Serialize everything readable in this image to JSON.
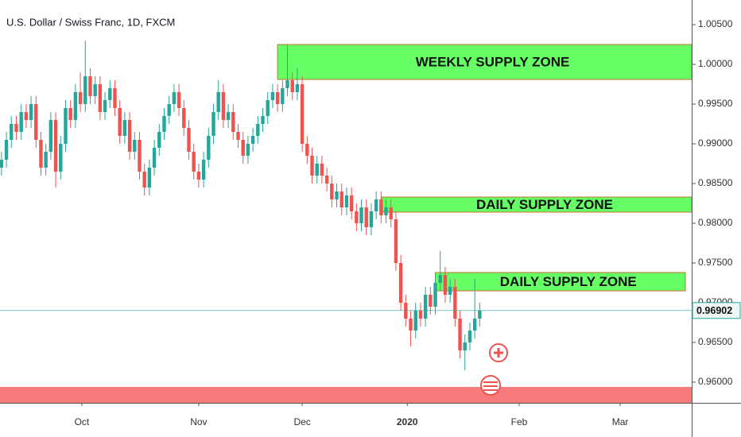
{
  "chart_data": {
    "type": "candlestick",
    "title": "U.S. Dollar / Swiss Franc, 1D, FXCM",
    "up_color": "#26a69a",
    "down_color": "#ef5350",
    "open": [
      0.987,
      0.988,
      0.9905,
      0.9925,
      0.9915,
      0.994,
      0.993,
      0.995,
      0.9905,
      0.987,
      0.989,
      0.993,
      0.9865,
      0.99,
      0.9945,
      0.993,
      0.9965,
      0.995,
      0.9985,
      0.996,
      0.9975,
      0.994,
      0.9955,
      0.997,
      0.9945,
      0.991,
      0.993,
      0.989,
      0.9905,
      0.9865,
      0.9845,
      0.987,
      0.9895,
      0.9915,
      0.9935,
      0.995,
      0.9965,
      0.9945,
      0.992,
      0.989,
      0.9865,
      0.9855,
      0.988,
      0.991,
      0.994,
      0.9965,
      0.993,
      0.994,
      0.9915,
      0.9905,
      0.9885,
      0.99,
      0.991,
      0.9925,
      0.9935,
      0.9955,
      0.9965,
      0.995,
      0.997,
      0.998,
      0.9965,
      0.9975,
      0.99,
      0.9885,
      0.986,
      0.9875,
      0.986,
      0.985,
      0.983,
      0.984,
      0.982,
      0.9835,
      0.9815,
      0.98,
      0.982,
      0.9795,
      0.9815,
      0.983,
      0.981,
      0.982,
      0.9805,
      0.975,
      0.97,
      0.968,
      0.9665,
      0.969,
      0.968,
      0.971,
      0.9695,
      0.9725,
      0.9735,
      0.971,
      0.972,
      0.968,
      0.964,
      0.965,
      0.9665,
      0.968
    ],
    "high": [
      0.989,
      0.9915,
      0.9935,
      0.9935,
      0.995,
      0.995,
      0.996,
      0.996,
      0.9915,
      0.99,
      0.994,
      0.994,
      0.991,
      0.9955,
      0.9955,
      0.9975,
      0.999,
      1.003,
      0.9995,
      0.9985,
      0.9985,
      0.9965,
      0.998,
      0.998,
      0.9955,
      0.994,
      0.994,
      0.9915,
      0.9915,
      0.9875,
      0.988,
      0.9905,
      0.9925,
      0.9945,
      0.996,
      0.9975,
      0.9975,
      0.9955,
      0.993,
      0.99,
      0.9875,
      0.989,
      0.992,
      0.995,
      0.998,
      0.9975,
      0.995,
      0.995,
      0.9925,
      0.9915,
      0.991,
      0.992,
      0.9935,
      0.9945,
      0.9965,
      0.9975,
      0.9975,
      0.998,
      1.0025,
      0.999,
      0.9995,
      0.9985,
      0.991,
      0.9895,
      0.9885,
      0.9885,
      0.987,
      0.986,
      0.985,
      0.985,
      0.9845,
      0.9845,
      0.9825,
      0.983,
      0.983,
      0.9825,
      0.984,
      0.984,
      0.983,
      0.983,
      0.9815,
      0.976,
      0.971,
      0.969,
      0.97,
      0.97,
      0.972,
      0.972,
      0.9735,
      0.9765,
      0.9745,
      0.973,
      0.973,
      0.969,
      0.966,
      0.9675,
      0.973,
      0.97
    ],
    "low": [
      0.986,
      0.987,
      0.9895,
      0.9905,
      0.9905,
      0.992,
      0.992,
      0.9895,
      0.986,
      0.986,
      0.988,
      0.9845,
      0.9855,
      0.989,
      0.992,
      0.992,
      0.994,
      0.994,
      0.995,
      0.995,
      0.993,
      0.993,
      0.9945,
      0.9935,
      0.99,
      0.99,
      0.988,
      0.988,
      0.9855,
      0.9835,
      0.9835,
      0.986,
      0.9885,
      0.9905,
      0.9925,
      0.994,
      0.9935,
      0.991,
      0.988,
      0.9855,
      0.9845,
      0.9845,
      0.987,
      0.99,
      0.993,
      0.992,
      0.992,
      0.9905,
      0.9895,
      0.9875,
      0.9875,
      0.989,
      0.99,
      0.9915,
      0.9925,
      0.9945,
      0.994,
      0.994,
      0.996,
      0.9955,
      0.9955,
      0.989,
      0.9875,
      0.985,
      0.985,
      0.985,
      0.984,
      0.982,
      0.982,
      0.981,
      0.981,
      0.9805,
      0.979,
      0.979,
      0.9785,
      0.9785,
      0.9805,
      0.98,
      0.98,
      0.9795,
      0.974,
      0.969,
      0.967,
      0.9645,
      0.9655,
      0.967,
      0.967,
      0.9685,
      0.9685,
      0.9715,
      0.97,
      0.97,
      0.967,
      0.963,
      0.9615,
      0.964,
      0.9655,
      0.967
    ],
    "close": [
      0.988,
      0.9905,
      0.9925,
      0.9915,
      0.994,
      0.993,
      0.995,
      0.9905,
      0.987,
      0.989,
      0.993,
      0.9865,
      0.99,
      0.9945,
      0.993,
      0.9965,
      0.995,
      0.9985,
      0.996,
      0.9975,
      0.994,
      0.9955,
      0.997,
      0.9945,
      0.991,
      0.993,
      0.989,
      0.9905,
      0.9865,
      0.9845,
      0.987,
      0.9895,
      0.9915,
      0.9935,
      0.995,
      0.9965,
      0.9945,
      0.992,
      0.989,
      0.9865,
      0.9855,
      0.988,
      0.991,
      0.994,
      0.9965,
      0.993,
      0.994,
      0.9915,
      0.9905,
      0.9885,
      0.99,
      0.991,
      0.9925,
      0.9935,
      0.9955,
      0.9965,
      0.995,
      0.997,
      0.998,
      0.9965,
      0.9975,
      0.99,
      0.9885,
      0.986,
      0.9875,
      0.986,
      0.985,
      0.983,
      0.984,
      0.982,
      0.9835,
      0.9815,
      0.98,
      0.982,
      0.9795,
      0.9815,
      0.983,
      0.981,
      0.982,
      0.9805,
      0.975,
      0.97,
      0.968,
      0.9665,
      0.969,
      0.968,
      0.971,
      0.9695,
      0.9725,
      0.9735,
      0.971,
      0.972,
      0.968,
      0.964,
      0.965,
      0.9665,
      0.968,
      0.969
    ],
    "xlim": [
      -0.3,
      140
    ],
    "xticks": [
      {
        "value": 16.3,
        "label": "Oct"
      },
      {
        "value": 40,
        "label": "Nov"
      },
      {
        "value": 61,
        "label": "Dec"
      },
      {
        "value": 82.3,
        "label": "2020"
      },
      {
        "value": 105,
        "label": "Feb"
      },
      {
        "value": 125.5,
        "label": "Mar"
      }
    ],
    "ylim": [
      0.9574,
      1.0081
    ],
    "yticks": [
      {
        "value": 1.005,
        "label": "1.00500"
      },
      {
        "value": 1.0,
        "label": "1.00000"
      },
      {
        "value": 0.995,
        "label": "0.99500"
      },
      {
        "value": 0.99,
        "label": "0.99000"
      },
      {
        "value": 0.985,
        "label": "0.98500"
      },
      {
        "value": 0.98,
        "label": "0.98000"
      },
      {
        "value": 0.975,
        "label": "0.97500"
      },
      {
        "value": 0.97,
        "label": "0.97000"
      },
      {
        "value": 0.965,
        "label": "0.96500"
      },
      {
        "value": 0.96,
        "label": "0.96000"
      }
    ],
    "last_price": 0.96902,
    "zones": [
      {
        "label": "WEEKLY SUPPLY ZONE",
        "top": 1.0025,
        "bottom": 0.9981,
        "start": 56,
        "end": 140,
        "color": "#66ff66"
      },
      {
        "label": "DAILY SUPPLY ZONE",
        "top": 0.9833,
        "bottom": 0.9814,
        "start": 77.1,
        "end": 140,
        "color": "#66ff66"
      },
      {
        "label": "DAILY SUPPLY ZONE",
        "top": 0.9738,
        "bottom": 0.9715,
        "start": 88,
        "end": 138.7,
        "color": "#66ff66"
      },
      {
        "top": 0.9594,
        "bottom": 0.9574,
        "start": -0.3,
        "end": 140,
        "color": "#f77b7b"
      }
    ]
  }
}
